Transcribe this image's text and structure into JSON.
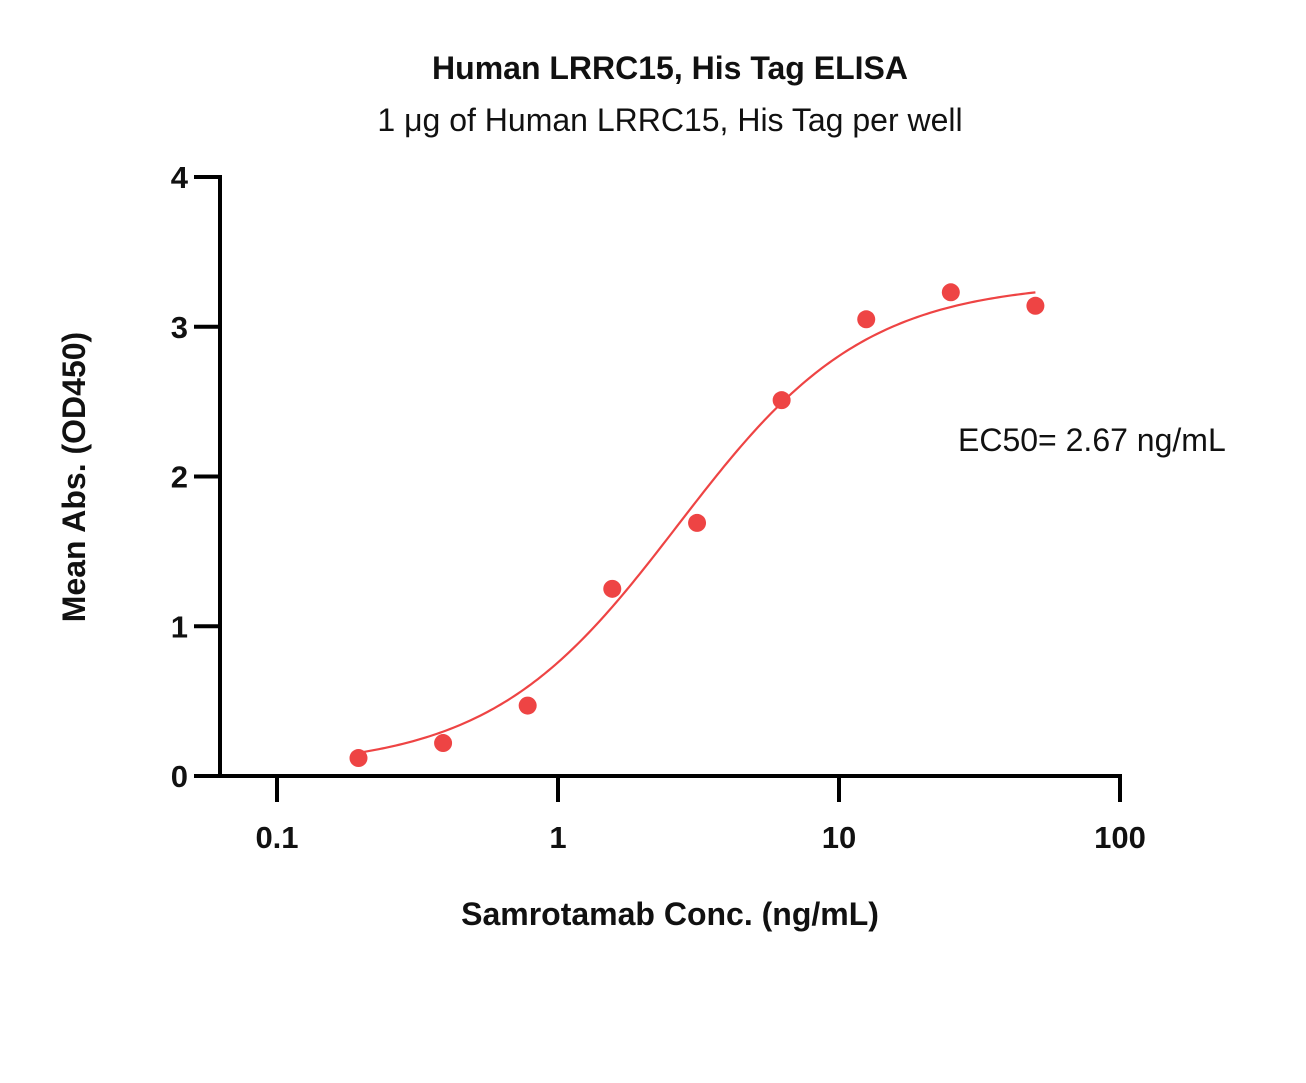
{
  "chart_data": {
    "type": "scatter",
    "title": "Human LRRC15, His Tag ELISA",
    "subtitle": "1 μg of Human LRRC15, His Tag per well",
    "xlabel": "Samrotamab Conc. (ng/mL)",
    "ylabel": "Mean Abs. (OD450)",
    "xscale": "log",
    "xlim": [
      0.1,
      100
    ],
    "ylim": [
      0,
      4
    ],
    "xticks": [
      "0.1",
      "1",
      "10",
      "100"
    ],
    "yticks": [
      "0",
      "1",
      "2",
      "3",
      "4"
    ],
    "grid": false,
    "series": [
      {
        "x": [
          0.195,
          0.39,
          0.78,
          1.56,
          3.125,
          6.25,
          12.5,
          25,
          50
        ],
        "y": [
          0.12,
          0.22,
          0.47,
          1.25,
          1.69,
          2.51,
          3.05,
          3.23,
          3.14
        ],
        "color": "#ee4444"
      }
    ],
    "fit": {
      "model": "4PL",
      "bottom": 0.05,
      "top": 3.3,
      "ec50": 2.67,
      "hill": 1.3,
      "x_range": [
        0.195,
        50
      ],
      "color": "#ee4444"
    },
    "annotation": "EC50= 2.67 ng/mL"
  }
}
